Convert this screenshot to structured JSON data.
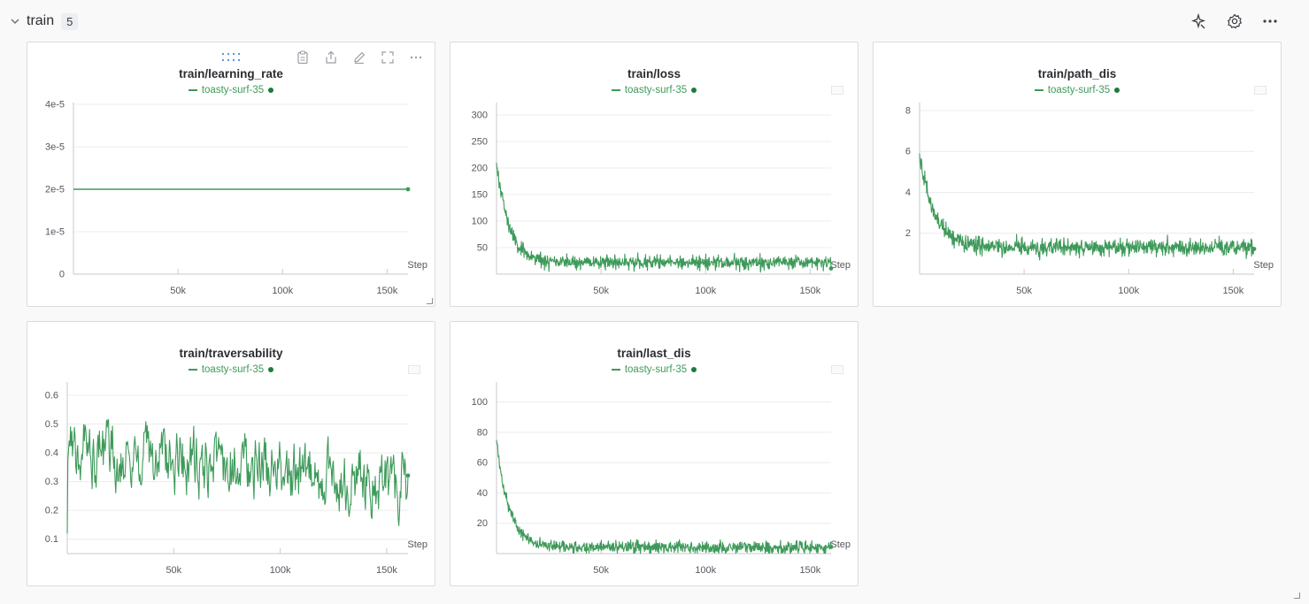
{
  "section": {
    "title": "train",
    "count": "5"
  },
  "icons": {
    "collapse": "chevron-down-icon",
    "sparkle": "sparkle-icon",
    "settings": "gear-icon",
    "more": "more-horizontal-icon"
  },
  "colors": {
    "series": "#3e9a5a",
    "accent": "#1f7a3a",
    "grid": "#ececee"
  },
  "chart_data": [
    {
      "type": "line",
      "title": "train/learning_rate",
      "legend": "toasty-surf-35",
      "xlabel": "Step",
      "xlim": [
        0,
        160000
      ],
      "x_ticks": [
        50000,
        100000,
        150000
      ],
      "x_tick_labels": [
        "50k",
        "100k",
        "150k"
      ],
      "ylim": [
        0,
        4e-05
      ],
      "y_ticks": [
        0,
        1e-05,
        2e-05,
        3e-05,
        4e-05
      ],
      "y_tick_labels": [
        "0",
        "1e-5",
        "2e-5",
        "3e-5",
        "4e-5"
      ],
      "series": [
        {
          "name": "toasty-surf-35",
          "kind": "constant",
          "value": 2e-05
        }
      ]
    },
    {
      "type": "line",
      "title": "train/loss",
      "legend": "toasty-surf-35",
      "xlabel": "Step",
      "xlim": [
        0,
        160000
      ],
      "x_ticks": [
        50000,
        100000,
        150000
      ],
      "x_tick_labels": [
        "50k",
        "100k",
        "150k"
      ],
      "ylim": [
        0,
        320
      ],
      "y_ticks": [
        50,
        100,
        150,
        200,
        250,
        300
      ],
      "y_tick_labels": [
        "50",
        "100",
        "150",
        "200",
        "250",
        "300"
      ],
      "series": [
        {
          "name": "toasty-surf-35",
          "kind": "decay",
          "start": 210,
          "floor": 22,
          "rate": 6000,
          "noise": 8
        }
      ]
    },
    {
      "type": "line",
      "title": "train/path_dis",
      "legend": "toasty-surf-35",
      "xlabel": "Step",
      "xlim": [
        0,
        160000
      ],
      "x_ticks": [
        50000,
        100000,
        150000
      ],
      "x_tick_labels": [
        "50k",
        "100k",
        "150k"
      ],
      "ylim": [
        0,
        8.3
      ],
      "y_ticks": [
        2,
        4,
        6,
        8
      ],
      "y_tick_labels": [
        "2",
        "4",
        "6",
        "8"
      ],
      "series": [
        {
          "name": "toasty-surf-35",
          "kind": "decay",
          "start": 5.9,
          "floor": 1.3,
          "rate": 7000,
          "noise": 0.25
        }
      ]
    },
    {
      "type": "line",
      "title": "train/traversability",
      "legend": "toasty-surf-35",
      "xlabel": "Step",
      "xlim": [
        0,
        160000
      ],
      "x_ticks": [
        50000,
        100000,
        150000
      ],
      "x_tick_labels": [
        "50k",
        "100k",
        "150k"
      ],
      "ylim": [
        0.05,
        0.64
      ],
      "y_ticks": [
        0.1,
        0.2,
        0.3,
        0.4,
        0.5,
        0.6
      ],
      "y_tick_labels": [
        "0.1",
        "0.2",
        "0.3",
        "0.4",
        "0.5",
        "0.6"
      ],
      "series": [
        {
          "name": "toasty-surf-35",
          "kind": "noisy",
          "start": 0.12,
          "mean_start": 0.42,
          "mean_end": 0.28,
          "noise": 0.09
        }
      ]
    },
    {
      "type": "line",
      "title": "train/last_dis",
      "legend": "toasty-surf-35",
      "xlabel": "Step",
      "xlim": [
        0,
        160000
      ],
      "x_ticks": [
        50000,
        100000,
        150000
      ],
      "x_tick_labels": [
        "50k",
        "100k",
        "150k"
      ],
      "ylim": [
        0,
        112
      ],
      "y_ticks": [
        20,
        40,
        60,
        80,
        100
      ],
      "y_tick_labels": [
        "20",
        "40",
        "60",
        "80",
        "100"
      ],
      "series": [
        {
          "name": "toasty-surf-35",
          "kind": "decay",
          "start": 75,
          "floor": 4,
          "rate": 6000,
          "noise": 2.5
        }
      ]
    }
  ]
}
